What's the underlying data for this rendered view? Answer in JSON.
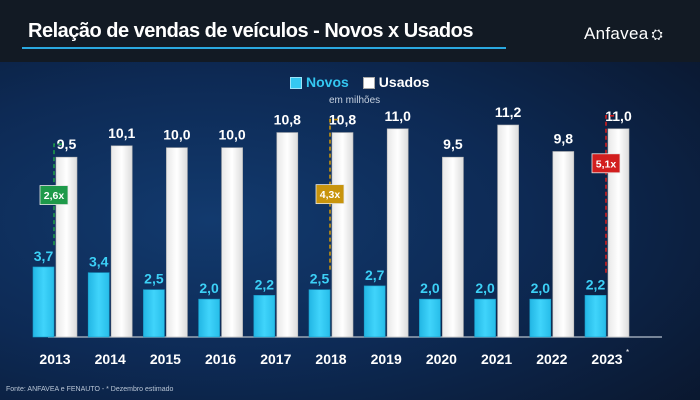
{
  "header": {
    "title": "Relação de vendas de veículos - Novos x Usados",
    "logo": "Anfavea",
    "logo_icon": "anfavea-emblem"
  },
  "legend": {
    "items": [
      {
        "label": "Novos",
        "color": "#34c8f2"
      },
      {
        "label": "Usados",
        "color": "#ffffff"
      }
    ],
    "unit": "em milhões"
  },
  "footer": {
    "source": "Fonte: ANFAVEA e FENAUTO  -  * Dezembro estimado"
  },
  "chart_data": {
    "type": "bar",
    "title": "Relação de vendas de veículos - Novos x Usados",
    "xlabel": "",
    "ylabel": "em milhões",
    "categories": [
      "2013",
      "2014",
      "2015",
      "2016",
      "2017",
      "2018",
      "2019",
      "2020",
      "2021",
      "2022",
      "2023*"
    ],
    "series": [
      {
        "name": "Novos",
        "color": "#34c8f2",
        "values": [
          3.7,
          3.4,
          2.5,
          2.0,
          2.2,
          2.5,
          2.7,
          2.0,
          2.0,
          2.0,
          2.2
        ],
        "labels": [
          "3,7",
          "3,4",
          "2,5",
          "2,0",
          "2,2",
          "2,5",
          "2,7",
          "2,0",
          "2,0",
          "2,0",
          "2,2"
        ]
      },
      {
        "name": "Usados",
        "color": "#ffffff",
        "values": [
          9.5,
          10.1,
          10.0,
          10.0,
          10.8,
          10.8,
          11.0,
          9.5,
          11.2,
          9.8,
          11.0
        ],
        "labels": [
          "9,5",
          "10,1",
          "10,0",
          "10,0",
          "10,8",
          "10,8",
          "11,0",
          "9,5",
          "11,2",
          "9,8",
          "11,0"
        ]
      }
    ],
    "ylim": [
      0,
      12
    ],
    "grid": false,
    "legend_position": "top-center",
    "annotations": [
      {
        "category": "2013",
        "text": "2,6x",
        "color": "#1e9a4a"
      },
      {
        "category": "2018",
        "text": "4,3x",
        "color": "#c8940c"
      },
      {
        "category": "2023*",
        "text": "5,1x",
        "color": "#d21e1e"
      }
    ],
    "footnote": "* Dezembro estimado"
  }
}
